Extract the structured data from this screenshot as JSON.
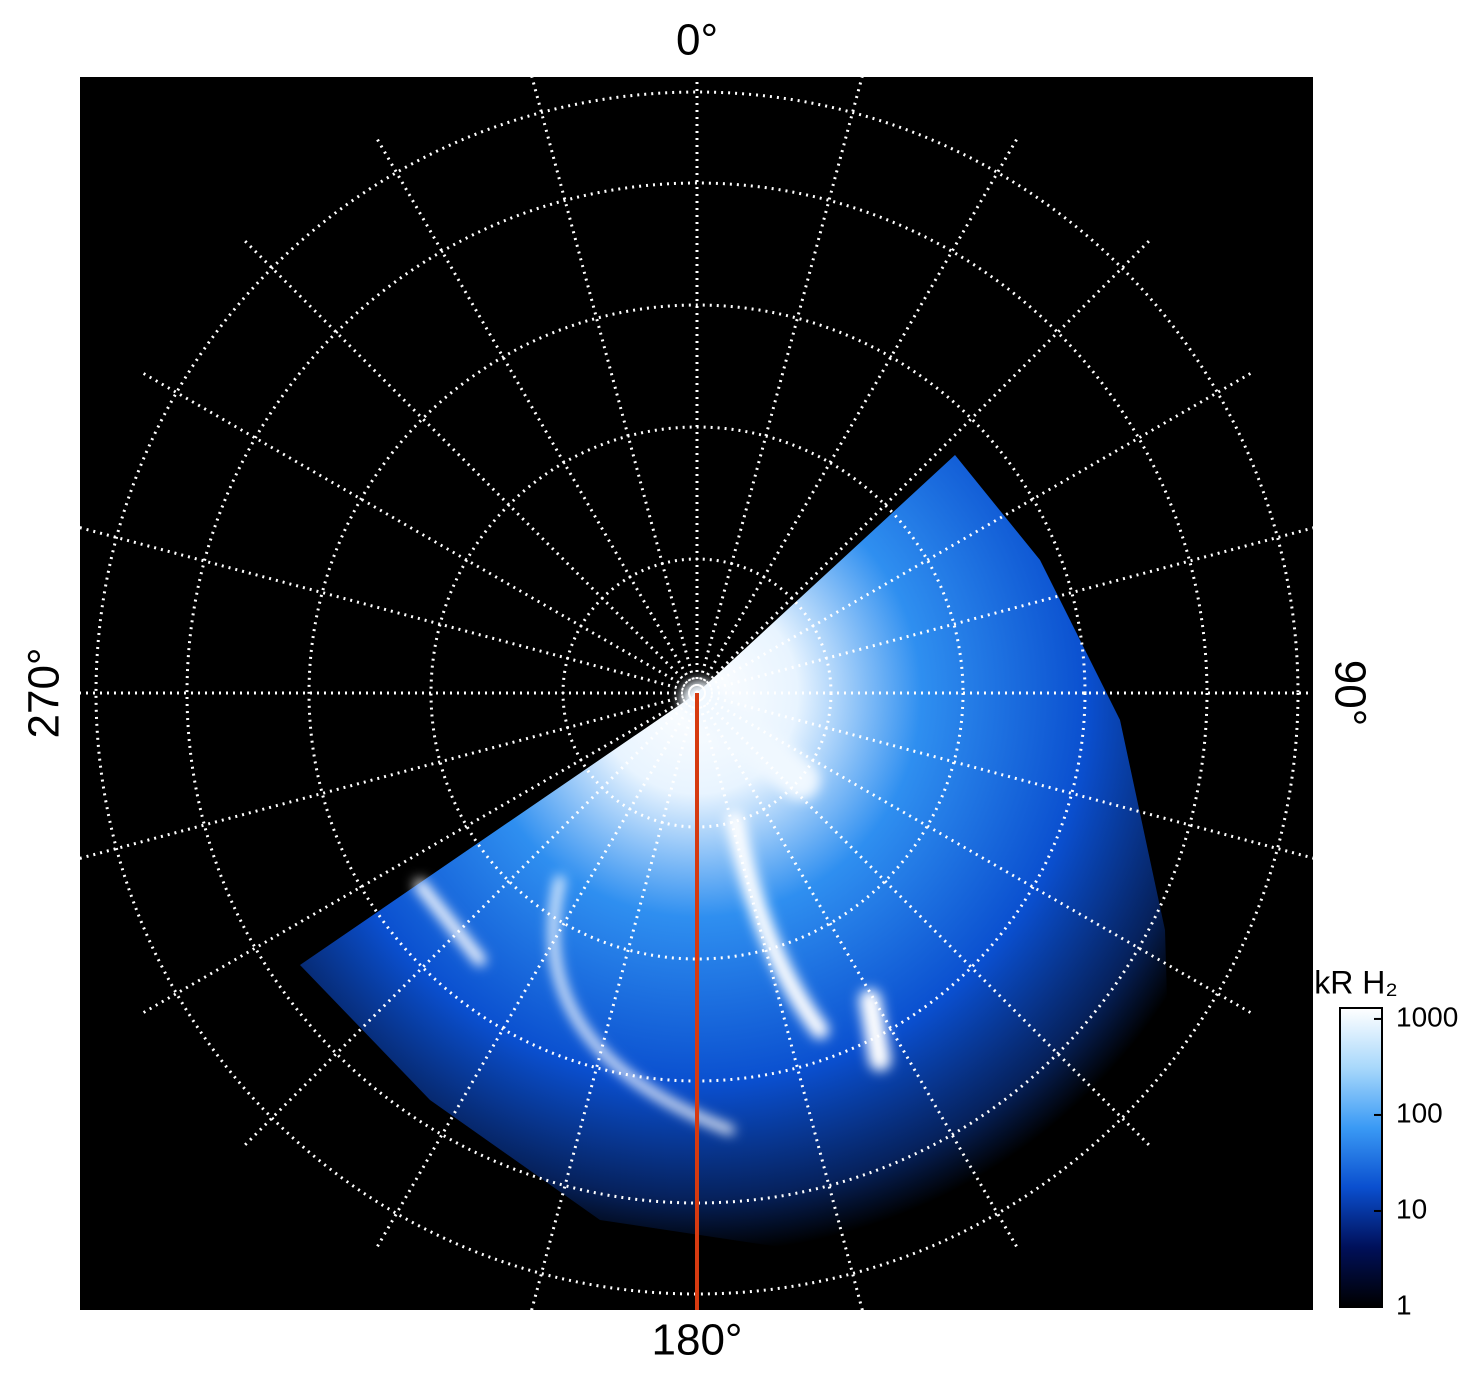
{
  "chart_data": {
    "type": "polar-image",
    "longitude_ticks": [
      {
        "value": 0,
        "label": "0°"
      },
      {
        "value": 90,
        "label": "90°"
      },
      {
        "value": 180,
        "label": "180°"
      },
      {
        "value": 270,
        "label": "270°"
      }
    ],
    "colorbar": {
      "label": "kR H₂",
      "log": true,
      "clim": [
        1,
        1300
      ],
      "ticks": [
        1,
        10,
        100,
        1000
      ],
      "colors": [
        "#000000",
        "#00105a",
        "#0a4fcf",
        "#3a9af5",
        "#a8d8fb",
        "#ffffff"
      ]
    },
    "marker_longitude": 180,
    "marker_color": "#d63a10"
  }
}
